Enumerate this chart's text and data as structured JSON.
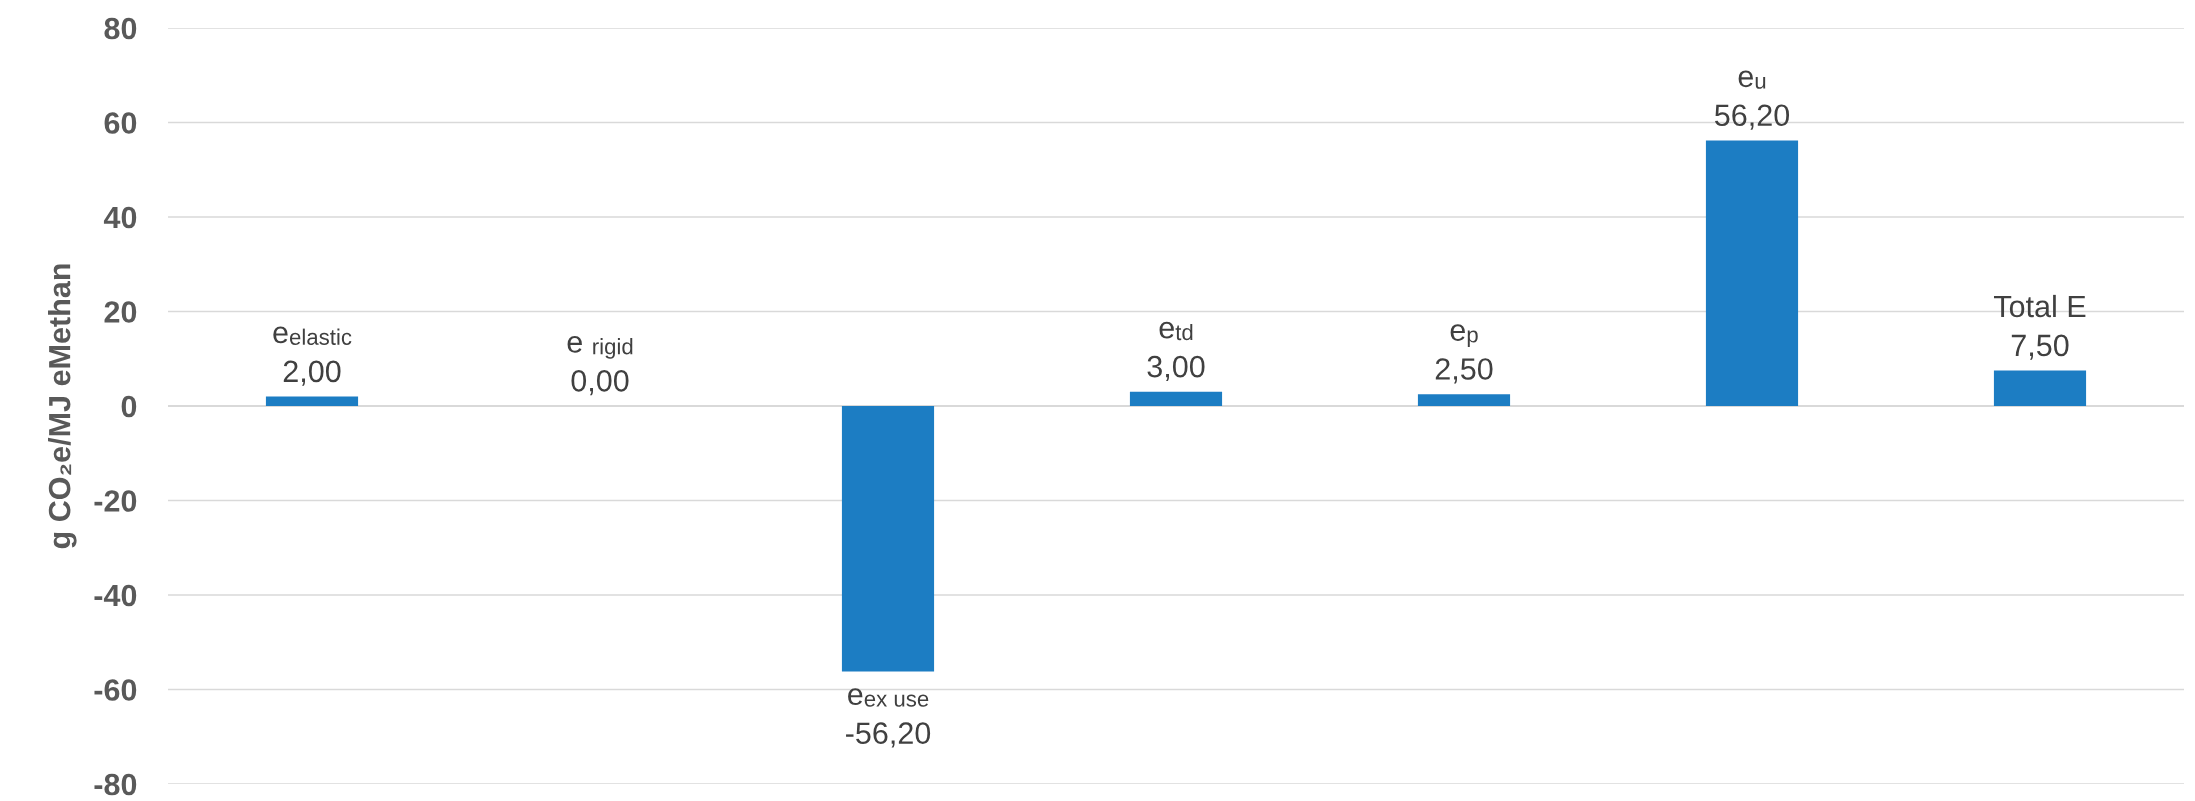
{
  "chart_data": {
    "type": "bar",
    "ylabel": "g CO₂e/MJ eMethan",
    "categories": [
      "e$_{elastic}$",
      "e $_{rigid}$",
      "e$_{ex use}$",
      "e$_{td}$",
      "e$_{p}$",
      "e$_{u}$",
      "Total E"
    ],
    "values": [
      2.0,
      0.0,
      -56.2,
      3.0,
      2.5,
      56.2,
      7.5
    ],
    "value_labels": [
      "2,00",
      "0,00",
      "-56,20",
      "3,00",
      "2,50",
      "56,20",
      "7,50"
    ],
    "color": "#1c7dc3",
    "ylim": [
      -80,
      80
    ],
    "yticks": [
      -80,
      -60,
      -40,
      -20,
      0,
      20,
      40,
      60,
      80
    ],
    "grid": "y",
    "tick_labels": "y",
    "legend": false
  }
}
